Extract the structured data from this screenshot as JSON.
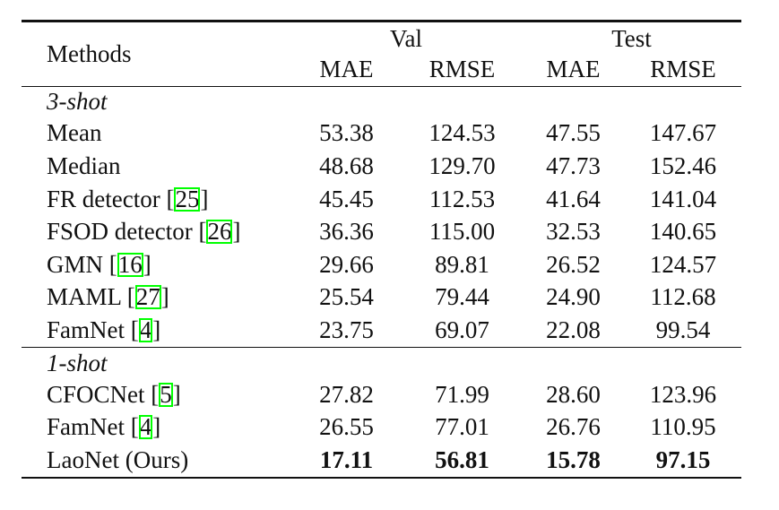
{
  "header": {
    "methods": "Methods",
    "group_val": "Val",
    "group_test": "Test",
    "cols": [
      "MAE",
      "RMSE",
      "MAE",
      "RMSE"
    ]
  },
  "sections": [
    {
      "label": "3-shot",
      "rows": [
        {
          "name": "Mean",
          "ref": "",
          "values": [
            "53.38",
            "124.53",
            "47.55",
            "147.67"
          ]
        },
        {
          "name": "Median",
          "ref": "",
          "values": [
            "48.68",
            "129.70",
            "47.73",
            "152.46"
          ]
        },
        {
          "name": "FR detector [",
          "ref": "25",
          "values": [
            "45.45",
            "112.53",
            "41.64",
            "141.04"
          ]
        },
        {
          "name": "FSOD detector [",
          "ref": "26",
          "values": [
            "36.36",
            "115.00",
            "32.53",
            "140.65"
          ]
        },
        {
          "name": "GMN [",
          "ref": "16",
          "values": [
            "29.66",
            "89.81",
            "26.52",
            "124.57"
          ]
        },
        {
          "name": "MAML [",
          "ref": "27",
          "values": [
            "25.54",
            "79.44",
            "24.90",
            "112.68"
          ]
        },
        {
          "name": "FamNet [",
          "ref": "4",
          "values": [
            "23.75",
            "69.07",
            "22.08",
            "99.54"
          ]
        }
      ]
    },
    {
      "label": "1-shot",
      "rows": [
        {
          "name": "CFOCNet [",
          "ref": "5",
          "values": [
            "27.82",
            "71.99",
            "28.60",
            "123.96"
          ]
        },
        {
          "name": "FamNet [",
          "ref": "4",
          "values": [
            "26.55",
            "77.01",
            "26.76",
            "110.95"
          ]
        },
        {
          "name": "LaoNet (Ours)",
          "ref": "",
          "values": [
            "17.11",
            "56.81",
            "15.78",
            "97.15"
          ],
          "bold": true
        }
      ]
    }
  ],
  "close_bracket": "]"
}
